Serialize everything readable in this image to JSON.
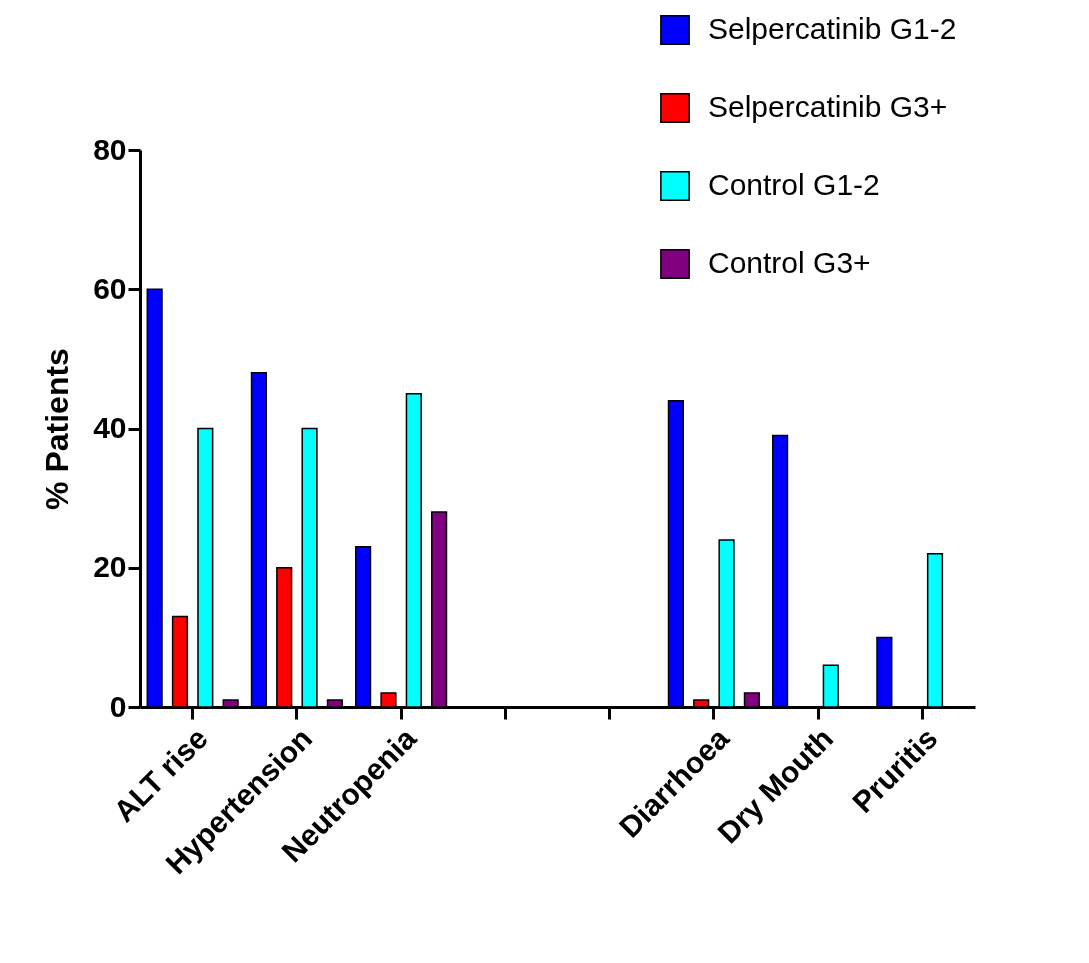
{
  "chart_data": {
    "type": "bar",
    "ylabel": "% Patients",
    "categories": [
      "ALT rise",
      "Hypertension",
      "Neutropenia",
      null,
      null,
      "Diarrhoea",
      "Dry Mouth",
      "Pruritis"
    ],
    "series": [
      {
        "name": "Selpercatinib G1-2",
        "color": "#0000ff",
        "values": [
          60,
          48,
          23,
          null,
          null,
          44,
          39,
          10
        ]
      },
      {
        "name": "Selpercatinib G3+",
        "color": "#ff0000",
        "values": [
          13,
          20,
          2,
          null,
          null,
          1,
          null,
          null
        ]
      },
      {
        "name": "Control G1-2",
        "color": "#00ffff",
        "values": [
          40,
          40,
          45,
          null,
          null,
          24,
          6,
          22
        ]
      },
      {
        "name": "Control G3+",
        "color": "#800080",
        "values": [
          1,
          1,
          28,
          null,
          null,
          2,
          null,
          null
        ]
      }
    ],
    "ylim": [
      0,
      80
    ],
    "yticks": [
      0,
      20,
      40,
      60,
      80
    ],
    "grid": false,
    "legend": "top right"
  }
}
